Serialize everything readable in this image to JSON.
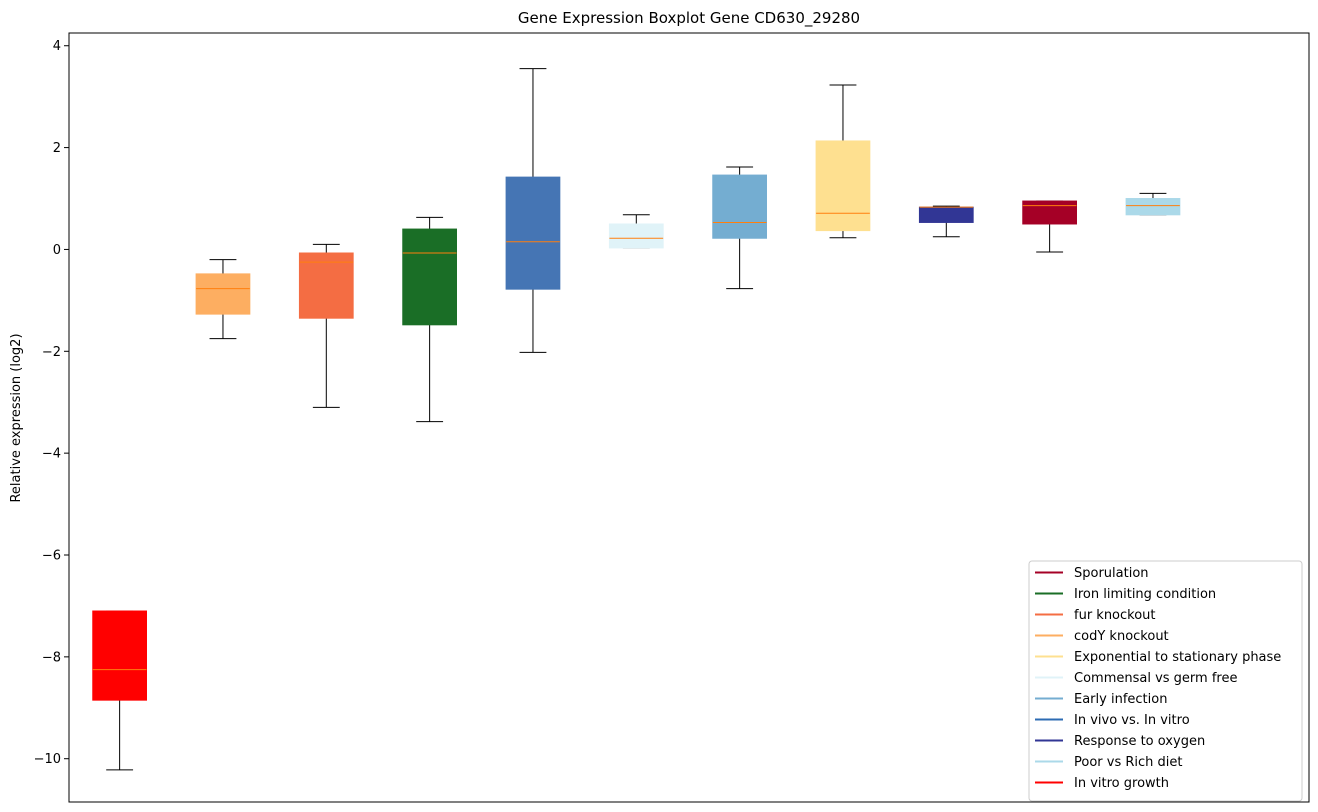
{
  "chart_data": {
    "type": "boxplot",
    "title": "Gene Expression Boxplot Gene CD630_29280",
    "xlabel": "",
    "ylabel": "Relative expression (log2)",
    "ylim": [
      -10.85,
      4.25
    ],
    "yticks": [
      4,
      2,
      0,
      -2,
      -4,
      -6,
      -8,
      -10
    ],
    "ytick_labels": [
      "4",
      "2",
      "0",
      "−2",
      "−4",
      "−6",
      "−8",
      "−10"
    ],
    "legend_position": "lower-right",
    "median_color": "#ff7f0e",
    "series": [
      {
        "name": "In vitro growth",
        "color": "#ff0000",
        "whislo": -10.22,
        "q1": -8.85,
        "med": -8.25,
        "q3": -7.1,
        "whishi": -7.1
      },
      {
        "name": "codY knockout",
        "color": "#fdae61",
        "whislo": -1.75,
        "q1": -1.27,
        "med": -0.77,
        "q3": -0.48,
        "whishi": -0.2
      },
      {
        "name": "fur knockout",
        "color": "#f46d43",
        "whislo": -3.1,
        "q1": -1.35,
        "med": -0.25,
        "q3": -0.07,
        "whishi": 0.1
      },
      {
        "name": "Iron limiting condition",
        "color": "#1a6e26",
        "whislo": -3.38,
        "q1": -1.48,
        "med": -0.07,
        "q3": 0.4,
        "whishi": 0.63
      },
      {
        "name": "In vivo vs. In vitro",
        "color": "#4575b4",
        "whislo": -2.02,
        "q1": -0.78,
        "med": 0.15,
        "q3": 1.42,
        "whishi": 3.55
      },
      {
        "name": "Commensal vs germ free",
        "color": "#e0f3f8",
        "whislo": 0.03,
        "q1": 0.03,
        "med": 0.22,
        "q3": 0.5,
        "whishi": 0.68
      },
      {
        "name": "Early infection",
        "color": "#74add1",
        "whislo": -0.77,
        "q1": 0.22,
        "med": 0.53,
        "q3": 1.46,
        "whishi": 1.62
      },
      {
        "name": "Exponential to stationary phase",
        "color": "#fee090",
        "whislo": 0.23,
        "q1": 0.37,
        "med": 0.71,
        "q3": 2.13,
        "whishi": 3.23
      },
      {
        "name": "Response to oxygen",
        "color": "#313695",
        "whislo": 0.25,
        "q1": 0.53,
        "med": 0.83,
        "q3": 0.83,
        "whishi": 0.85
      },
      {
        "name": "Sporulation",
        "color": "#a50026",
        "whislo": -0.05,
        "q1": 0.5,
        "med": 0.86,
        "q3": 0.95,
        "whishi": 0.95
      },
      {
        "name": "Poor vs Rich diet",
        "color": "#abd9e9",
        "whislo": 0.68,
        "q1": 0.68,
        "med": 0.86,
        "q3": 1.0,
        "whishi": 1.1
      }
    ],
    "legend": [
      {
        "label": "Sporulation",
        "color": "#a50026"
      },
      {
        "label": "Iron limiting condition",
        "color": "#1a6e26"
      },
      {
        "label": "fur knockout",
        "color": "#f46d43"
      },
      {
        "label": "codY knockout",
        "color": "#fdae61"
      },
      {
        "label": "Exponential to stationary phase",
        "color": "#fee090"
      },
      {
        "label": "Commensal vs germ free",
        "color": "#e0f3f8"
      },
      {
        "label": "Early infection",
        "color": "#74add1"
      },
      {
        "label": "In vivo vs. In vitro",
        "color": "#2c6bb3"
      },
      {
        "label": "Response to oxygen",
        "color": "#313695"
      },
      {
        "label": "Poor vs Rich diet",
        "color": "#abd9e9"
      },
      {
        "label": "In vitro growth",
        "color": "#ff0000"
      }
    ]
  }
}
